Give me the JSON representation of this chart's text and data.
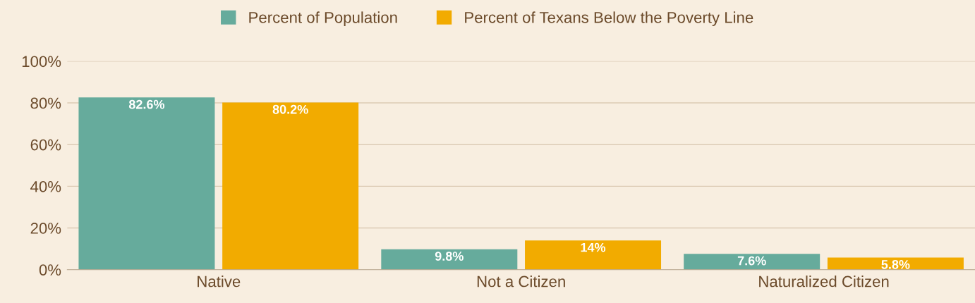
{
  "chart_data": {
    "type": "bar",
    "categories": [
      "Native",
      "Not a Citizen",
      "Naturalized Citizen"
    ],
    "series": [
      {
        "name": "Percent of Population",
        "color": "#66ab9c",
        "values": [
          82.6,
          9.8,
          7.6
        ],
        "value_labels": [
          "82.6%",
          "9.8%",
          "7.6%"
        ]
      },
      {
        "name": "Percent of Texans Below the Poverty Line",
        "color": "#f2ab00",
        "values": [
          80.2,
          14,
          5.8
        ],
        "value_labels": [
          "80.2%",
          "14%",
          "5.8%"
        ]
      }
    ],
    "ylim": [
      0,
      100
    ],
    "yticks": [
      {
        "value": 0,
        "label": "0%"
      },
      {
        "value": 20,
        "label": "20%"
      },
      {
        "value": 40,
        "label": "40%"
      },
      {
        "value": 60,
        "label": "60%"
      },
      {
        "value": 80,
        "label": "80%"
      },
      {
        "value": 100,
        "label": "100%"
      }
    ],
    "grid": "y",
    "legend": "top"
  }
}
